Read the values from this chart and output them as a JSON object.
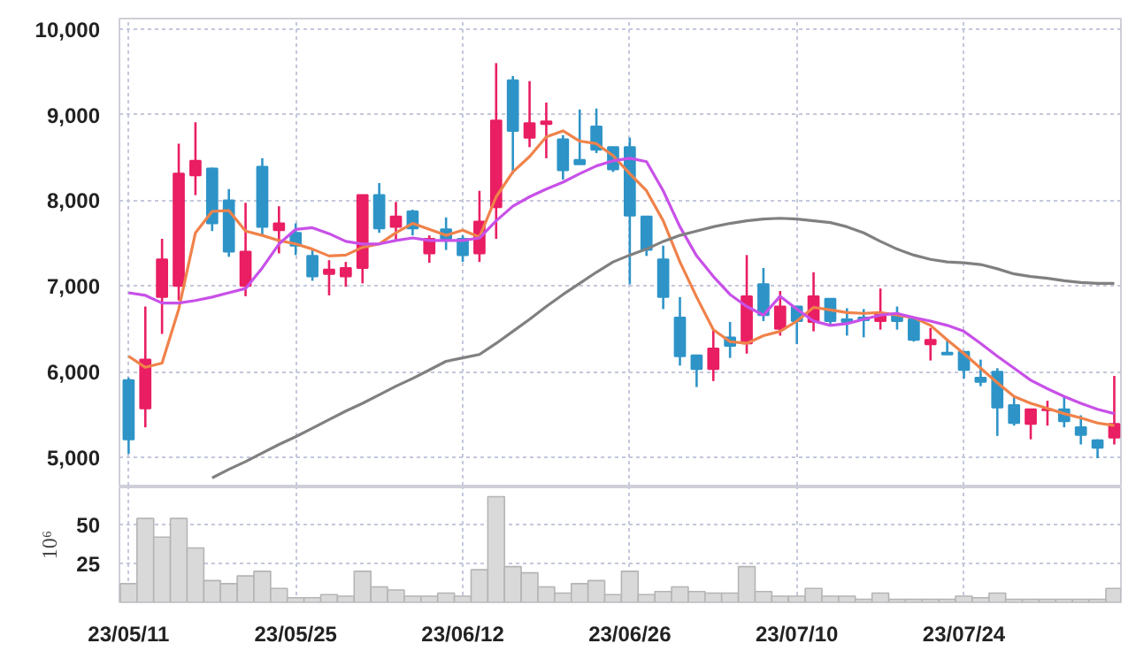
{
  "chart_data": [
    {
      "type": "candlestick",
      "categories": [
        null,
        null,
        null,
        null,
        null,
        null,
        null,
        null,
        null,
        null,
        null,
        null,
        null,
        null,
        null,
        null,
        null,
        null,
        null,
        null,
        null,
        null,
        null,
        null,
        null,
        null,
        null,
        null,
        null,
        null,
        null,
        null,
        null,
        null,
        null,
        null,
        null,
        null,
        null,
        null,
        null,
        null,
        null,
        null,
        null,
        null,
        null,
        null,
        null,
        null,
        null,
        null,
        null,
        null,
        null,
        null,
        null,
        null,
        null,
        null
      ],
      "ohlc": [
        [
          5900,
          5930,
          5040,
          5210
        ],
        [
          5570,
          6760,
          5350,
          6140
        ],
        [
          6870,
          7550,
          6440,
          7310
        ],
        [
          7000,
          8660,
          6830,
          8310
        ],
        [
          8290,
          8910,
          8060,
          8460
        ],
        [
          8370,
          8380,
          7640,
          7730
        ],
        [
          8000,
          8130,
          7340,
          7400
        ],
        [
          7000,
          7970,
          6880,
          7400
        ],
        [
          8390,
          8490,
          7580,
          7690
        ],
        [
          7650,
          7930,
          7380,
          7730
        ],
        [
          7620,
          7730,
          7360,
          7470
        ],
        [
          7350,
          7420,
          7060,
          7110
        ],
        [
          7140,
          7300,
          6890,
          7190
        ],
        [
          7110,
          7280,
          6990,
          7210
        ],
        [
          7210,
          8060,
          7030,
          8060
        ],
        [
          8060,
          8200,
          7620,
          7670
        ],
        [
          7690,
          7980,
          7530,
          7810
        ],
        [
          7870,
          7890,
          7590,
          7670
        ],
        [
          7380,
          7590,
          7270,
          7550
        ],
        [
          7660,
          7800,
          7420,
          7550
        ],
        [
          7550,
          7590,
          7280,
          7360
        ],
        [
          7380,
          8110,
          7280,
          7750
        ],
        [
          7920,
          9600,
          7550,
          8930
        ],
        [
          9400,
          9450,
          8310,
          8810
        ],
        [
          8730,
          9390,
          8620,
          8900
        ],
        [
          8890,
          9140,
          8490,
          8920
        ],
        [
          8710,
          8760,
          8240,
          8350
        ],
        [
          8470,
          9060,
          8420,
          8420
        ],
        [
          8860,
          9070,
          8550,
          8590
        ],
        [
          8620,
          8620,
          8330,
          8360
        ],
        [
          8620,
          8730,
          7020,
          7820
        ],
        [
          7810,
          7810,
          7350,
          7420
        ],
        [
          7310,
          7470,
          6730,
          6870
        ],
        [
          6630,
          6870,
          6070,
          6180
        ],
        [
          6190,
          6190,
          5820,
          6030
        ],
        [
          6030,
          6490,
          5890,
          6270
        ],
        [
          6400,
          6580,
          6160,
          6300
        ],
        [
          6330,
          7360,
          6210,
          6880
        ],
        [
          7020,
          7210,
          6590,
          6660
        ],
        [
          6500,
          6940,
          6420,
          6760
        ],
        [
          6760,
          6760,
          6320,
          6590
        ],
        [
          6580,
          7160,
          6470,
          6880
        ],
        [
          6850,
          6850,
          6540,
          6590
        ],
        [
          6610,
          6740,
          6420,
          6580
        ],
        [
          6630,
          6730,
          6400,
          6600
        ],
        [
          6590,
          6970,
          6490,
          6680
        ],
        [
          6660,
          6760,
          6490,
          6590
        ],
        [
          6610,
          6610,
          6350,
          6370
        ],
        [
          6320,
          6510,
          6130,
          6370
        ],
        [
          6220,
          6380,
          6200,
          6200
        ],
        [
          6230,
          6230,
          5920,
          6020
        ],
        [
          5930,
          6140,
          5830,
          5880
        ],
        [
          6000,
          6040,
          5250,
          5580
        ],
        [
          5610,
          5700,
          5370,
          5400
        ],
        [
          5390,
          5560,
          5210,
          5560
        ],
        [
          5550,
          5660,
          5370,
          5560
        ],
        [
          5560,
          5710,
          5350,
          5420
        ],
        [
          5350,
          5490,
          5150,
          5260
        ],
        [
          5200,
          5210,
          4990,
          5110
        ],
        [
          5230,
          5950,
          5150,
          5390
        ]
      ],
      "colors": [
        "#2e94c8",
        "#e91e63",
        "#e91e63",
        "#e91e63",
        "#e91e63",
        "#2e94c8",
        "#2e94c8",
        "#e91e63",
        "#2e94c8",
        "#e91e63",
        "#2e94c8",
        "#2e94c8",
        "#e91e63",
        "#e91e63",
        "#e91e63",
        "#2e94c8",
        "#e91e63",
        "#2e94c8",
        "#e91e63",
        "#2e94c8",
        "#2e94c8",
        "#e91e63",
        "#e91e63",
        "#2e94c8",
        "#e91e63",
        "#e91e63",
        "#2e94c8",
        "#2e94c8",
        "#2e94c8",
        "#2e94c8",
        "#2e94c8",
        "#2e94c8",
        "#2e94c8",
        "#2e94c8",
        "#2e94c8",
        "#e91e63",
        "#2e94c8",
        "#e91e63",
        "#2e94c8",
        "#e91e63",
        "#2e94c8",
        "#e91e63",
        "#2e94c8",
        "#2e94c8",
        "#2e94c8",
        "#e91e63",
        "#2e94c8",
        "#2e94c8",
        "#e91e63",
        "#2e94c8",
        "#2e94c8",
        "#2e94c8",
        "#2e94c8",
        "#2e94c8",
        "#e91e63",
        "#e91e63",
        "#2e94c8",
        "#2e94c8",
        "#2e94c8",
        "#e91e63"
      ],
      "series": [
        {
          "type": "line",
          "color": "#f0824a",
          "values": [
            6180,
            6050,
            6100,
            6730,
            7620,
            7870,
            7880,
            7640,
            7590,
            7530,
            7490,
            7430,
            7350,
            7360,
            7450,
            7490,
            7620,
            7730,
            7660,
            7590,
            7650,
            7570,
            8040,
            8330,
            8510,
            8740,
            8810,
            8690,
            8660,
            8520,
            8310,
            8110,
            7760,
            7280,
            6870,
            6490,
            6350,
            6330,
            6420,
            6470,
            6590,
            6750,
            6720,
            6690,
            6680,
            6690,
            6660,
            6630,
            6540,
            6370,
            6210,
            6040,
            5870,
            5710,
            5630,
            5570,
            5510,
            5460,
            5400,
            5370
          ]
        },
        {
          "type": "line",
          "color": "#c850e8",
          "values": [
            6920,
            6890,
            6800,
            6800,
            6830,
            6870,
            6920,
            6970,
            7210,
            7490,
            7660,
            7680,
            7610,
            7520,
            7490,
            7490,
            7530,
            7560,
            7530,
            7530,
            7530,
            7560,
            7760,
            7930,
            8040,
            8130,
            8210,
            8310,
            8400,
            8460,
            8490,
            8450,
            8110,
            7690,
            7350,
            7110,
            6900,
            6760,
            6660,
            6880,
            6730,
            6590,
            6540,
            6560,
            6610,
            6660,
            6680,
            6630,
            6590,
            6540,
            6470,
            6330,
            6180,
            6040,
            5900,
            5800,
            5710,
            5630,
            5560,
            5510
          ]
        },
        {
          "type": "line",
          "color": "#808080",
          "values": [
            null,
            null,
            null,
            null,
            null,
            4760,
            4860,
            4950,
            5050,
            5150,
            5240,
            5340,
            5440,
            5540,
            5630,
            5730,
            5830,
            5920,
            6020,
            6120,
            6160,
            6200,
            6330,
            6470,
            6610,
            6760,
            6900,
            7030,
            7160,
            7280,
            7360,
            7430,
            7520,
            7590,
            7640,
            7690,
            7730,
            7760,
            7780,
            7790,
            7780,
            7760,
            7740,
            7690,
            7620,
            7520,
            7430,
            7360,
            7310,
            7280,
            7270,
            7250,
            7200,
            7140,
            7110,
            7090,
            7060,
            7040,
            7030,
            7030
          ]
        }
      ],
      "ylim": [
        4670,
        10120
      ],
      "yticks": [
        {
          "value": 5000,
          "label": "5,000"
        },
        {
          "value": 6000,
          "label": "6,000"
        },
        {
          "value": 7000,
          "label": "7,000"
        },
        {
          "value": 8000,
          "label": "8,000"
        },
        {
          "value": 9000,
          "label": "9,000"
        },
        {
          "value": 10000,
          "label": "10,000"
        }
      ],
      "grid": true,
      "tick_labels": "y"
    },
    {
      "type": "bar",
      "ylabel": "10⁶",
      "categories": [
        "23/05/11",
        null,
        null,
        null,
        null,
        null,
        null,
        null,
        null,
        null,
        "23/05/25",
        null,
        null,
        null,
        null,
        null,
        null,
        null,
        null,
        null,
        "23/06/12",
        null,
        null,
        null,
        null,
        null,
        null,
        null,
        null,
        null,
        "23/06/26",
        null,
        null,
        null,
        null,
        null,
        null,
        null,
        null,
        null,
        "23/07/10",
        null,
        null,
        null,
        null,
        null,
        null,
        null,
        null,
        null,
        "23/07/24",
        null,
        null,
        null,
        null,
        null,
        null,
        null,
        null,
        null
      ],
      "values": [
        12,
        54,
        42,
        54,
        35,
        14,
        12,
        17,
        20,
        9,
        3,
        3,
        5,
        4,
        20,
        10,
        8,
        4,
        4,
        6,
        4,
        21,
        68,
        23,
        19,
        10,
        6,
        12,
        14,
        5,
        20,
        5,
        7,
        10,
        7,
        6,
        6,
        23,
        7,
        4,
        4,
        9,
        4,
        4,
        2,
        6,
        2,
        2,
        2,
        2,
        4,
        3,
        6,
        2,
        2,
        2,
        2,
        2,
        2,
        9
      ],
      "color": "#d9d9d9",
      "ylim": [
        0,
        74
      ],
      "yticks": [
        25,
        50
      ],
      "grid": true
    }
  ]
}
